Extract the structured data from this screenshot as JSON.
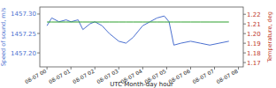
{
  "chart_data": {
    "type": "line",
    "xlabel": "UTC Month-day hour",
    "ylabel": "Speed of sound, m/s",
    "y2label": "Temperature, deg",
    "x": [
      0.0,
      0.2,
      0.5,
      0.8,
      1.0,
      1.3,
      1.5,
      1.8,
      2.0,
      2.3,
      2.6,
      3.0,
      3.3,
      3.6,
      4.0,
      4.3,
      4.6,
      4.9,
      5.1,
      5.3,
      5.6,
      6.0,
      6.4,
      6.8,
      7.2,
      7.6
    ],
    "series": [
      {
        "color": "#4a6fd0",
        "axis": "y",
        "values": [
          1457.27,
          1457.29,
          1457.28,
          1457.285,
          1457.28,
          1457.285,
          1457.26,
          1457.275,
          1457.28,
          1457.27,
          1457.25,
          1457.23,
          1457.225,
          1457.24,
          1457.27,
          1457.28,
          1457.29,
          1457.295,
          1457.28,
          1457.22,
          1457.225,
          1457.23,
          1457.225,
          1457.22,
          1457.225,
          1457.23
        ]
      },
      {
        "color": "#2ca02c",
        "axis": "y2",
        "values": [
          1.212,
          1.212,
          1.212,
          1.212,
          1.212,
          1.212,
          1.212,
          1.212,
          1.212,
          1.212,
          1.212,
          1.212,
          1.212,
          1.212,
          1.212,
          1.212,
          1.212,
          1.212,
          1.212,
          1.212,
          1.212,
          1.212,
          1.212,
          1.212,
          1.212,
          1.212
        ]
      }
    ],
    "xlim": [
      -0.3,
      8.2
    ],
    "xticks": [
      {
        "value": 0,
        "label": "08-07 00"
      },
      {
        "value": 1,
        "label": "08-07 01"
      },
      {
        "value": 2,
        "label": "08-07 02"
      },
      {
        "value": 3,
        "label": "08-07 03"
      },
      {
        "value": 4,
        "label": "08-07 04"
      },
      {
        "value": 5,
        "label": "08-07 05"
      },
      {
        "value": 6,
        "label": "08-07 06"
      },
      {
        "value": 7,
        "label": "08-07 07"
      },
      {
        "value": 8,
        "label": "08-07 08"
      }
    ],
    "ylim": [
      1457.164,
      1457.318
    ],
    "yticks": [
      {
        "value": 1457.2,
        "label": "1457.20"
      },
      1457.25,
      {
        "value": 1457.3,
        "label": "1457.30"
      }
    ],
    "y2lim": [
      1.1655,
      1.2275
    ],
    "y2ticks": [
      1.17,
      1.18,
      1.19,
      {
        "value": 1.2,
        "label": "1.20"
      },
      1.21,
      1.22
    ],
    "grid": false
  }
}
